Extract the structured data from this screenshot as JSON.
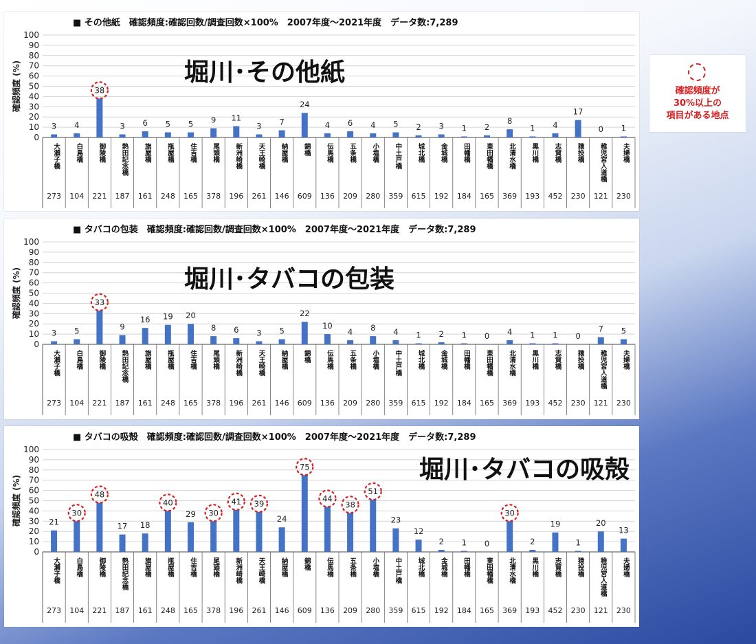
{
  "legend": {
    "text": "確認頻度が\n30%以上の\n項目がある地点",
    "color": "#d42020"
  },
  "highlight_threshold": 30,
  "chart_data": [
    {
      "type": "bar",
      "header": "■ その他紙　確認頻度:確認回数/調査回数×100%　2007年度～2021年度　データ数:7,289",
      "title": "堀川･その他紙",
      "ylabel": "確認頻度 (%)",
      "ylim": [
        0,
        100
      ],
      "yticks": [
        0,
        10,
        20,
        30,
        40,
        50,
        60,
        70,
        80,
        90,
        100
      ],
      "grid": true,
      "bar_color": "#4472c4",
      "categories": [
        "大瀬子橋",
        "白鳥橋",
        "御陵橋",
        "熱田記念橋",
        "旗屋橋",
        "瓶屋橋",
        "住吉橋",
        "尾頭橋",
        "新洲崎橋",
        "天王崎橋",
        "納屋橋",
        "錦橋",
        "伝馬橋",
        "五条橋",
        "小塩橋",
        "中土戸橋",
        "城北橋",
        "金城橋",
        "田幡橋",
        "東田幡橋",
        "北清水橋",
        "黒川橋",
        "志賀橋",
        "猿投橋",
        "稚児宮人道橋",
        "夫婦橋"
      ],
      "values": [
        3,
        4,
        38,
        3,
        6,
        5,
        5,
        9,
        11,
        3,
        7,
        24,
        4,
        6,
        4,
        5,
        2,
        3,
        1,
        2,
        8,
        1,
        4,
        17,
        0,
        1
      ],
      "counts": [
        273,
        104,
        221,
        187,
        161,
        248,
        165,
        378,
        196,
        261,
        146,
        609,
        136,
        209,
        280,
        359,
        615,
        192,
        184,
        165,
        369,
        193,
        452,
        230,
        121,
        230
      ]
    },
    {
      "type": "bar",
      "header": "■ タバコの包装　確認頻度:確認回数/調査回数×100%　2007年度～2021年度　データ数:7,289",
      "title": "堀川･タバコの包装",
      "ylabel": "確認頻度 (%)",
      "ylim": [
        0,
        100
      ],
      "yticks": [
        0,
        10,
        20,
        30,
        40,
        50,
        60,
        70,
        80,
        90,
        100
      ],
      "grid": true,
      "bar_color": "#4472c4",
      "categories": [
        "大瀬子橋",
        "白鳥橋",
        "御陵橋",
        "熱田記念橋",
        "旗屋橋",
        "瓶屋橋",
        "住吉橋",
        "尾頭橋",
        "新洲崎橋",
        "天王崎橋",
        "納屋橋",
        "錦橋",
        "伝馬橋",
        "五条橋",
        "小塩橋",
        "中土戸橋",
        "城北橋",
        "金城橋",
        "田幡橋",
        "東田幡橋",
        "北清水橋",
        "黒川橋",
        "志賀橋",
        "猿投橋",
        "稚児宮人道橋",
        "夫婦橋"
      ],
      "values": [
        3,
        5,
        33,
        9,
        16,
        19,
        20,
        8,
        6,
        3,
        5,
        22,
        10,
        4,
        8,
        4,
        1,
        2,
        1,
        0,
        4,
        1,
        1,
        0,
        7,
        5
      ],
      "counts": [
        273,
        104,
        221,
        187,
        161,
        248,
        165,
        378,
        196,
        261,
        146,
        609,
        136,
        209,
        280,
        359,
        615,
        192,
        184,
        165,
        369,
        193,
        452,
        230,
        121,
        230
      ]
    },
    {
      "type": "bar",
      "header": "■ タバコの吸殻　確認頻度:確認回数/調査回数×100%　2007年度～2021年度　データ数:7,289",
      "title": "堀川･タバコの吸殻",
      "ylabel": "確認頻度 (%)",
      "ylim": [
        0,
        100
      ],
      "yticks": [
        0,
        10,
        20,
        30,
        40,
        50,
        60,
        70,
        80,
        90,
        100
      ],
      "grid": true,
      "bar_color": "#4472c4",
      "categories": [
        "大瀬子橋",
        "白鳥橋",
        "御陵橋",
        "熱田記念橋",
        "旗屋橋",
        "瓶屋橋",
        "住吉橋",
        "尾頭橋",
        "新洲崎橋",
        "天王崎橋",
        "納屋橋",
        "錦橋",
        "伝馬橋",
        "五条橋",
        "小塩橋",
        "中土戸橋",
        "城北橋",
        "金城橋",
        "田幡橋",
        "東田幡橋",
        "北清水橋",
        "黒川橋",
        "志賀橋",
        "猿投橋",
        "稚児宮人道橋",
        "夫婦橋"
      ],
      "values": [
        21,
        30,
        48,
        17,
        18,
        40,
        29,
        30,
        41,
        39,
        24,
        75,
        44,
        38,
        51,
        23,
        12,
        2,
        1,
        0,
        30,
        2,
        19,
        1,
        20,
        13
      ],
      "counts": [
        273,
        104,
        221,
        187,
        161,
        248,
        165,
        378,
        196,
        261,
        146,
        609,
        136,
        209,
        280,
        359,
        615,
        192,
        184,
        165,
        369,
        193,
        452,
        230,
        121,
        230
      ]
    }
  ]
}
